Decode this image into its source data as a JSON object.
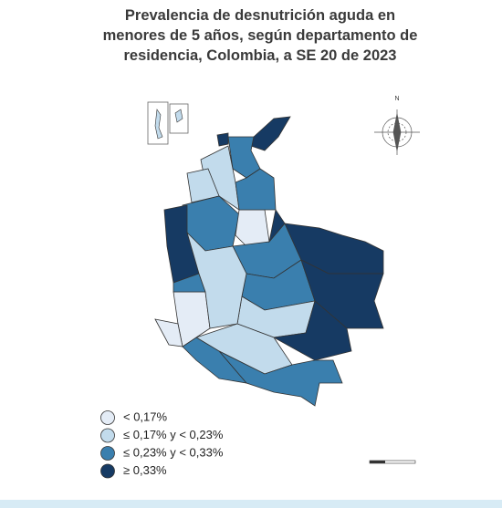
{
  "title": [
    "Prevalencia de desnutrición aguda en",
    "menores de 5 años, según departamento de",
    "residencia, Colombia, a SE 20 de 2023"
  ],
  "compass": "N",
  "legend": [
    {
      "label": "< 0,17%",
      "color": "#e4ecf6"
    },
    {
      "label": "≤ 0,17% y < 0,23%",
      "color": "#c2dbec"
    },
    {
      "label": "≤ 0,23% y < 0,33%",
      "color": "#3a7fae"
    },
    {
      "label": "≥ 0,33%",
      "color": "#163a63"
    }
  ]
}
